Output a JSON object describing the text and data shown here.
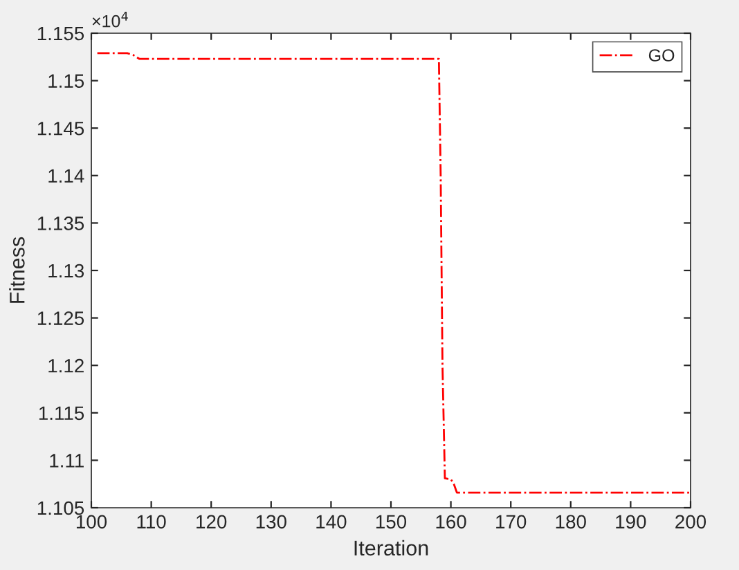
{
  "chart_data": {
    "type": "line",
    "xlabel": "Iteration",
    "ylabel": "Fitness",
    "annotations": [
      "×10$^{4}$"
    ],
    "series": [
      {
        "name": "GO",
        "color": "#ff0000",
        "x": [
          101,
          106,
          107,
          108,
          158,
          158.3,
          158.6,
          159,
          160,
          160.5,
          161,
          200
        ],
        "values": [
          1.1529,
          1.1529,
          1.1527,
          1.1523,
          1.1523,
          1.14,
          1.12,
          1.1081,
          1.108,
          1.1075,
          1.1066,
          1.1066
        ]
      }
    ],
    "xlim": [
      100,
      200
    ],
    "xticks": [
      100,
      110,
      120,
      130,
      140,
      150,
      160,
      170,
      180,
      190,
      200
    ],
    "ylim": [
      1.105,
      1.155
    ],
    "yticks": [
      1.105,
      1.11,
      1.115,
      1.12,
      1.125,
      1.13,
      1.135,
      1.14,
      1.145,
      1.15,
      1.155
    ],
    "legend": "top right",
    "line_style": "dashdot",
    "marker": "none",
    "grid": false
  }
}
